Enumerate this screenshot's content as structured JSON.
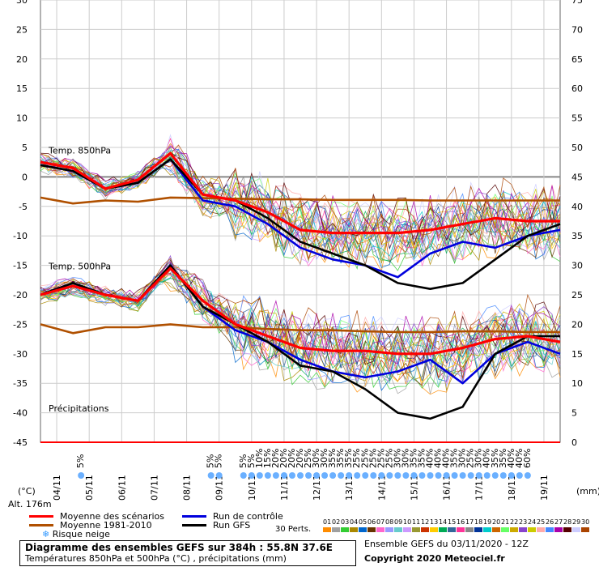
{
  "chart_data": {
    "type": "line",
    "title": "Diagramme des ensembles GEFS sur 384h : 55.8N 37.6E",
    "subtitle": "Températures 850hPa et 500hPa (°C) , précipitations (mm)",
    "y_left_unit": "(°C)",
    "y_right_unit": "(mm)",
    "altitude": "Alt. 176m",
    "y_left_ticks": [
      30,
      25,
      20,
      15,
      10,
      5,
      0,
      -5,
      -10,
      -15,
      -20,
      -25,
      -30,
      -35,
      -40,
      -45
    ],
    "y_right_ticks": [
      75,
      70,
      65,
      60,
      55,
      50,
      45,
      40,
      35,
      30,
      25,
      20,
      15,
      10,
      5,
      0
    ],
    "x_ticks": [
      "04/11",
      "05/11",
      "06/11",
      "07/11",
      "08/11",
      "09/11",
      "10/11",
      "11/11",
      "12/11",
      "13/11",
      "14/11",
      "15/11",
      "16/11",
      "17/11",
      "18/11",
      "19/11"
    ],
    "section_labels": {
      "t850": "Temp. 850hPa",
      "t500": "Temp. 500hPa",
      "precip": "Précipitations"
    },
    "x_hours": [
      0,
      24,
      48,
      72,
      96,
      120,
      144,
      168,
      192,
      216,
      240,
      264,
      288,
      312,
      336,
      360,
      384
    ],
    "series": [
      {
        "name": "Moyenne des scénarios",
        "color": "#ff0000",
        "group": "t850",
        "values": [
          2.5,
          1.5,
          -2,
          -0.5,
          4,
          -3,
          -4,
          -6,
          -9,
          -9.5,
          -9.5,
          -9.5,
          -9,
          -8,
          -7,
          -7.5,
          -7.5
        ]
      },
      {
        "name": "Moyenne 1981-2010",
        "color": "#b05000",
        "group": "t850",
        "values": [
          -3.5,
          -4.5,
          -4,
          -4.2,
          -3.5,
          -3.6,
          -3.7,
          -3.8,
          -3.8,
          -3.9,
          -3.9,
          -3.9,
          -4,
          -4,
          -4,
          -4,
          -4
        ]
      },
      {
        "name": "Run de contrôle",
        "color": "#0000dd",
        "group": "t850",
        "values": [
          2,
          1,
          -2,
          -1,
          3,
          -4,
          -5,
          -8,
          -12,
          -14,
          -15,
          -17,
          -13,
          -11,
          -12,
          -10,
          -9
        ]
      },
      {
        "name": "Run GFS",
        "color": "#000000",
        "group": "t850",
        "values": [
          2,
          1,
          -2,
          -1,
          3,
          -3,
          -4,
          -7,
          -11,
          -13,
          -15,
          -18,
          -19,
          -18,
          -14,
          -10,
          -8
        ]
      },
      {
        "name": "Moyenne des scénarios",
        "color": "#ff0000",
        "group": "t500",
        "values": [
          -20,
          -18.5,
          -20,
          -21,
          -15.5,
          -21,
          -25,
          -27,
          -29,
          -29.5,
          -29.5,
          -30,
          -30,
          -29,
          -27.5,
          -27,
          -28
        ]
      },
      {
        "name": "Moyenne 1981-2010",
        "color": "#b05000",
        "group": "t500",
        "values": [
          -25,
          -26.5,
          -25.5,
          -25.5,
          -25,
          -25.5,
          -25.5,
          -25.8,
          -26,
          -26,
          -26.2,
          -26.3,
          -26.3,
          -26.2,
          -26.2,
          -26.3,
          -26.3
        ]
      },
      {
        "name": "Run de contrôle",
        "color": "#0000dd",
        "group": "t500",
        "values": [
          -20,
          -18,
          -20,
          -21,
          -15,
          -22,
          -26,
          -28,
          -31,
          -33,
          -34,
          -33,
          -31,
          -35,
          -30,
          -28,
          -30
        ]
      },
      {
        "name": "Run GFS",
        "color": "#000000",
        "group": "t500",
        "values": [
          -20,
          -18,
          -20,
          -21,
          -15,
          -22,
          -25,
          -28,
          -32,
          -33,
          -36,
          -40,
          -41,
          -39,
          -30,
          -27,
          -27
        ]
      }
    ],
    "snow_risk": [
      {
        "hour": 30,
        "pct": "5%"
      },
      {
        "hour": 126,
        "pct": "5%"
      },
      {
        "hour": 132,
        "pct": "5%"
      },
      {
        "hour": 150,
        "pct": "5%"
      },
      {
        "hour": 156,
        "pct": "5%"
      },
      {
        "hour": 162,
        "pct": "10%"
      },
      {
        "hour": 168,
        "pct": "15%"
      },
      {
        "hour": 174,
        "pct": "20%"
      },
      {
        "hour": 180,
        "pct": "20%"
      },
      {
        "hour": 186,
        "pct": "20%"
      },
      {
        "hour": 192,
        "pct": "20%"
      },
      {
        "hour": 198,
        "pct": "25%"
      },
      {
        "hour": 204,
        "pct": "30%"
      },
      {
        "hour": 210,
        "pct": "30%"
      },
      {
        "hour": 216,
        "pct": "35%"
      },
      {
        "hour": 222,
        "pct": "35%"
      },
      {
        "hour": 228,
        "pct": "35%"
      },
      {
        "hour": 234,
        "pct": "25%"
      },
      {
        "hour": 240,
        "pct": "25%"
      },
      {
        "hour": 246,
        "pct": "25%"
      },
      {
        "hour": 252,
        "pct": "25%"
      },
      {
        "hour": 258,
        "pct": "25%"
      },
      {
        "hour": 264,
        "pct": "30%"
      },
      {
        "hour": 270,
        "pct": "30%"
      },
      {
        "hour": 276,
        "pct": "35%"
      },
      {
        "hour": 282,
        "pct": "35%"
      },
      {
        "hour": 288,
        "pct": "40%"
      },
      {
        "hour": 294,
        "pct": "40%"
      },
      {
        "hour": 300,
        "pct": "40%"
      },
      {
        "hour": 306,
        "pct": "35%"
      },
      {
        "hour": 312,
        "pct": "30%"
      },
      {
        "hour": 318,
        "pct": "25%"
      },
      {
        "hour": 324,
        "pct": "30%"
      },
      {
        "hour": 330,
        "pct": "40%"
      },
      {
        "hour": 336,
        "pct": "35%"
      },
      {
        "hour": 342,
        "pct": "35%"
      },
      {
        "hour": 348,
        "pct": "40%"
      },
      {
        "hour": 354,
        "pct": "40%"
      },
      {
        "hour": 360,
        "pct": "60%"
      }
    ],
    "legend": [
      {
        "label": "Moyenne des scénarios",
        "color": "#ff0000"
      },
      {
        "label": "Moyenne 1981-2010",
        "color": "#b05000"
      },
      {
        "label": "Run de contrôle",
        "color": "#0000dd"
      },
      {
        "label": "Run GFS",
        "color": "#000000"
      },
      {
        "label": "Risque neige",
        "color": "#3399ff"
      }
    ],
    "perturbations": {
      "label": "30 Perts.",
      "ids": [
        "01",
        "02",
        "03",
        "04",
        "05",
        "06",
        "07",
        "08",
        "09",
        "10",
        "11",
        "12",
        "13",
        "14",
        "15",
        "16",
        "17",
        "18",
        "19",
        "20",
        "21",
        "22",
        "23",
        "24",
        "25",
        "26",
        "27",
        "28",
        "29",
        "30"
      ],
      "colors": [
        "#ff8c00",
        "#a0a0a0",
        "#33cc33",
        "#aa8800",
        "#0066cc",
        "#663300",
        "#ff66cc",
        "#9999ff",
        "#66cccc",
        "#cc99ff",
        "#999933",
        "#cc3300",
        "#ffcc00",
        "#00aa55",
        "#336699",
        "#ff3399",
        "#888888",
        "#003399",
        "#00cccc",
        "#cc6600",
        "#66ff66",
        "#ccaa00",
        "#8844cc",
        "#cccc00",
        "#ffaaaa",
        "#4488ff",
        "#aa00aa",
        "#550000",
        "#ccccff",
        "#aa4400"
      ]
    }
  },
  "footer": {
    "title": "Diagramme des ensembles GEFS sur 384h : 55.8N 37.6E",
    "subtitle": "Températures 850hPa et 500hPa (°C) , précipitations (mm)",
    "run": "Ensemble GEFS du 03/11/2020 - 12Z",
    "copyright": "Copyright 2020 Meteociel.fr"
  }
}
